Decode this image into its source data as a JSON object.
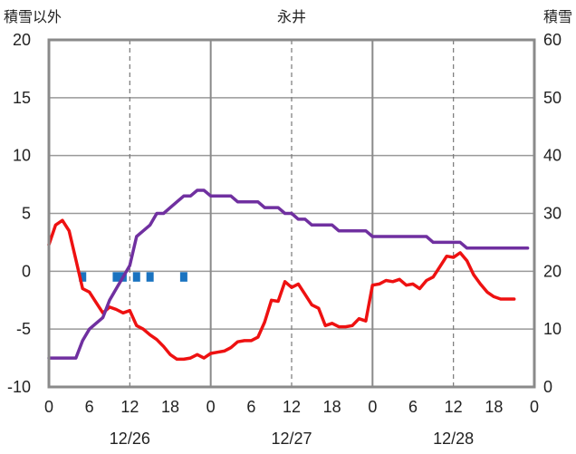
{
  "chart_data": {
    "type": "line",
    "title": "永井",
    "left_axis_title": "積雪以外",
    "right_axis_title": "積雪",
    "y_left": {
      "min": -10,
      "max": 20,
      "ticks": [
        20,
        15,
        10,
        5,
        0,
        -5,
        -10
      ]
    },
    "y_right": {
      "min": 0,
      "max": 60,
      "ticks": [
        60,
        50,
        40,
        30,
        20,
        10,
        0
      ]
    },
    "x": {
      "min": 0,
      "max": 72,
      "unit": "hours",
      "tick_values": [
        0,
        6,
        12,
        18,
        24,
        30,
        36,
        42,
        48,
        54,
        60,
        66,
        72
      ],
      "tick_labels": [
        "0",
        "6",
        "12",
        "18",
        "0",
        "6",
        "12",
        "18",
        "0",
        "6",
        "12",
        "18",
        "0"
      ],
      "date_labels": [
        {
          "at": 12,
          "text": "12/26"
        },
        {
          "at": 36,
          "text": "12/27"
        },
        {
          "at": 60,
          "text": "12/28"
        }
      ],
      "day_lines": [
        24,
        48
      ],
      "dashed_lines": [
        12,
        36,
        60
      ]
    },
    "grid": true,
    "series": [
      {
        "kind": "line",
        "axis": "left",
        "color": "#ee1111",
        "points": [
          [
            0,
            2.3
          ],
          [
            1,
            4.0
          ],
          [
            2,
            4.4
          ],
          [
            3,
            3.5
          ],
          [
            4,
            1.0
          ],
          [
            5,
            -1.5
          ],
          [
            6,
            -1.8
          ],
          [
            7,
            -2.7
          ],
          [
            8,
            -3.6
          ],
          [
            9,
            -3.1
          ],
          [
            10,
            -3.3
          ],
          [
            11,
            -3.6
          ],
          [
            12,
            -3.4
          ],
          [
            13,
            -4.7
          ],
          [
            14,
            -5.0
          ],
          [
            15,
            -5.5
          ],
          [
            16,
            -5.9
          ],
          [
            17,
            -6.5
          ],
          [
            18,
            -7.2
          ],
          [
            19,
            -7.6
          ],
          [
            20,
            -7.6
          ],
          [
            21,
            -7.5
          ],
          [
            22,
            -7.2
          ],
          [
            23,
            -7.5
          ],
          [
            24,
            -7.1
          ],
          [
            25,
            -7.0
          ],
          [
            26,
            -6.9
          ],
          [
            27,
            -6.6
          ],
          [
            28,
            -6.1
          ],
          [
            29,
            -6.0
          ],
          [
            30,
            -6.0
          ],
          [
            31,
            -5.7
          ],
          [
            32,
            -4.4
          ],
          [
            33,
            -2.5
          ],
          [
            34,
            -2.6
          ],
          [
            35,
            -0.9
          ],
          [
            36,
            -1.4
          ],
          [
            37,
            -1.1
          ],
          [
            38,
            -2.0
          ],
          [
            39,
            -2.9
          ],
          [
            40,
            -3.2
          ],
          [
            41,
            -4.7
          ],
          [
            42,
            -4.5
          ],
          [
            43,
            -4.8
          ],
          [
            44,
            -4.8
          ],
          [
            45,
            -4.7
          ],
          [
            46,
            -4.1
          ],
          [
            47,
            -4.3
          ],
          [
            48,
            -1.2
          ],
          [
            49,
            -1.1
          ],
          [
            50,
            -0.8
          ],
          [
            51,
            -0.9
          ],
          [
            52,
            -0.7
          ],
          [
            53,
            -1.2
          ],
          [
            54,
            -1.1
          ],
          [
            55,
            -1.5
          ],
          [
            56,
            -0.8
          ],
          [
            57,
            -0.5
          ],
          [
            58,
            0.4
          ],
          [
            59,
            1.3
          ],
          [
            60,
            1.2
          ],
          [
            61,
            1.6
          ],
          [
            62,
            0.9
          ],
          [
            63,
            -0.3
          ],
          [
            64,
            -1.1
          ],
          [
            65,
            -1.8
          ],
          [
            66,
            -2.2
          ],
          [
            67,
            -2.4
          ],
          [
            68,
            -2.4
          ],
          [
            69,
            -2.4
          ]
        ]
      },
      {
        "kind": "line",
        "axis": "right",
        "color": "#7030a0",
        "points": [
          [
            0,
            5
          ],
          [
            1,
            5
          ],
          [
            2,
            5
          ],
          [
            3,
            5
          ],
          [
            4,
            5
          ],
          [
            5,
            8
          ],
          [
            6,
            10
          ],
          [
            7,
            11
          ],
          [
            8,
            12
          ],
          [
            9,
            15
          ],
          [
            10,
            17
          ],
          [
            11,
            19
          ],
          [
            12,
            21
          ],
          [
            13,
            26
          ],
          [
            14,
            27
          ],
          [
            15,
            28
          ],
          [
            16,
            30
          ],
          [
            17,
            30
          ],
          [
            18,
            31
          ],
          [
            19,
            32
          ],
          [
            20,
            33
          ],
          [
            21,
            33
          ],
          [
            22,
            34
          ],
          [
            23,
            34
          ],
          [
            24,
            33
          ],
          [
            25,
            33
          ],
          [
            26,
            33
          ],
          [
            27,
            33
          ],
          [
            28,
            32
          ],
          [
            29,
            32
          ],
          [
            30,
            32
          ],
          [
            31,
            32
          ],
          [
            32,
            31
          ],
          [
            33,
            31
          ],
          [
            34,
            31
          ],
          [
            35,
            30
          ],
          [
            36,
            30
          ],
          [
            37,
            29
          ],
          [
            38,
            29
          ],
          [
            39,
            28
          ],
          [
            40,
            28
          ],
          [
            41,
            28
          ],
          [
            42,
            28
          ],
          [
            43,
            27
          ],
          [
            44,
            27
          ],
          [
            45,
            27
          ],
          [
            46,
            27
          ],
          [
            47,
            27
          ],
          [
            48,
            26
          ],
          [
            49,
            26
          ],
          [
            50,
            26
          ],
          [
            51,
            26
          ],
          [
            52,
            26
          ],
          [
            53,
            26
          ],
          [
            54,
            26
          ],
          [
            55,
            26
          ],
          [
            56,
            26
          ],
          [
            57,
            25
          ],
          [
            58,
            25
          ],
          [
            59,
            25
          ],
          [
            60,
            25
          ],
          [
            61,
            25
          ],
          [
            62,
            24
          ],
          [
            63,
            24
          ],
          [
            64,
            24
          ],
          [
            65,
            24
          ],
          [
            66,
            24
          ],
          [
            67,
            24
          ],
          [
            68,
            24
          ],
          [
            69,
            24
          ],
          [
            70,
            24
          ],
          [
            71,
            24
          ]
        ]
      },
      {
        "kind": "bar",
        "axis": "left",
        "color": "#1a73c0",
        "points": [
          [
            5,
            -0.9
          ],
          [
            10,
            -0.9
          ],
          [
            11,
            -0.9
          ],
          [
            13,
            -0.9
          ],
          [
            15,
            -0.9
          ],
          [
            20,
            -0.9
          ]
        ]
      }
    ]
  }
}
